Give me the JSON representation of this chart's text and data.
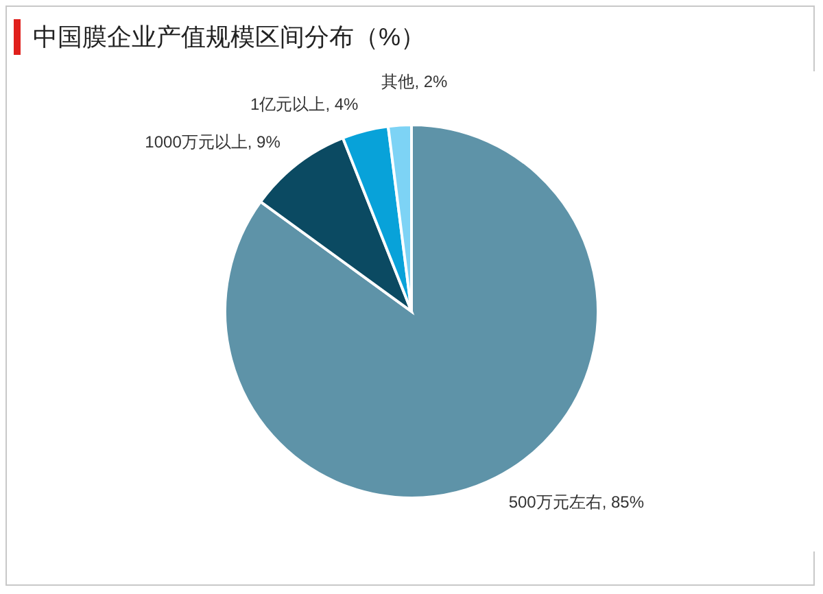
{
  "chart_data": {
    "type": "pie",
    "title": "中国膜企业产值规模区间分布（%）",
    "categories": [
      "500万元左右",
      "1000万元以上",
      "1亿元以上",
      "其他"
    ],
    "values": [
      85,
      9,
      4,
      2
    ],
    "value_labels": [
      "85%",
      "9%",
      "4%",
      "2%"
    ],
    "colors": [
      "#5e93a8",
      "#0b4a62",
      "#08a2d9",
      "#7dd3f5"
    ]
  }
}
